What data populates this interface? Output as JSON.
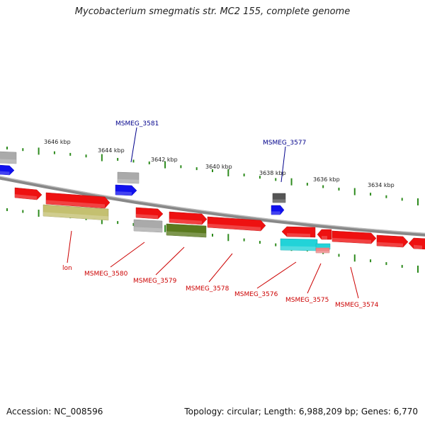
{
  "title": "Mycobacterium smegmatis str. MC2 155, complete genome",
  "footer": {
    "accession": "Accession: NC_008596",
    "summary": "Topology: circular; Length: 6,988,209 bp; Genes: 6,770"
  },
  "colors": {
    "backbone": "#888888",
    "tick": "#2e8b1e",
    "label_top": "#00008b",
    "label_bottom": "#cc0000",
    "gene_red": "#ee1111",
    "gene_blue": "#1010ee",
    "gene_gray": "#aaaaaa",
    "gene_darkgray": "#555555",
    "gene_olive": "#c4c070",
    "gene_green": "#5a7a1e",
    "gene_cyan": "#22d3d8",
    "gene_pink": "#ee8888"
  },
  "kbp_labels": [
    "3646 kbp",
    "3644 kbp",
    "3642 kbp",
    "3640 kbp",
    "3638 kbp",
    "3636 kbp",
    "3634 kbp"
  ],
  "gene_labels_top": [
    "MSMEG_3581",
    "MSMEG_3577"
  ],
  "gene_labels_bottom": [
    "lon",
    "MSMEG_3580",
    "MSMEG_3579",
    "MSMEG_3578",
    "MSMEG_3576",
    "MSMEG_3575",
    "MSMEG_3574"
  ]
}
